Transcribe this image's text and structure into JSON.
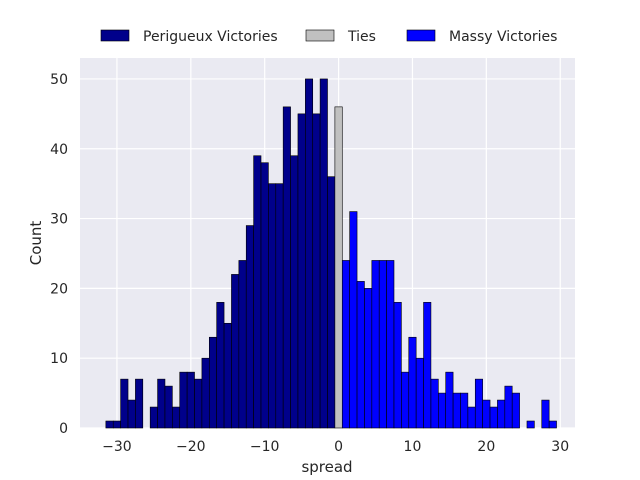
{
  "chart_data": {
    "type": "bar",
    "xlabel": "spread",
    "ylabel": "Count",
    "xlim": [
      -35,
      32
    ],
    "ylim": [
      0,
      53
    ],
    "x_ticks": [
      -30,
      -20,
      -10,
      0,
      10,
      20,
      30
    ],
    "x_tick_labels": [
      "−30",
      "−20",
      "−10",
      "0",
      "10",
      "20",
      "30"
    ],
    "y_ticks": [
      0,
      10,
      20,
      30,
      40,
      50
    ],
    "y_tick_labels": [
      "0",
      "10",
      "20",
      "30",
      "40",
      "50"
    ],
    "grid": true,
    "legend_position": "top",
    "background_color": "#eaeaf2",
    "series": [
      {
        "name": "Perigueux Victories",
        "color": "#00008b",
        "x": [
          -31,
          -30,
          -29,
          -28,
          -27,
          -26,
          -25,
          -24,
          -23,
          -22,
          -21,
          -20,
          -19,
          -18,
          -17,
          -16,
          -15,
          -14,
          -13,
          -12,
          -11,
          -10,
          -9,
          -8,
          -7,
          -6,
          -5,
          -4,
          -3,
          -2,
          -1
        ],
        "values": [
          1,
          1,
          7,
          4,
          7,
          0,
          3,
          7,
          6,
          3,
          8,
          8,
          7,
          10,
          13,
          18,
          15,
          22,
          24,
          29,
          39,
          38,
          35,
          35,
          46,
          39,
          45,
          50,
          45,
          50,
          36
        ]
      },
      {
        "name": "Ties",
        "color": "#c0c0c0",
        "x": [
          0
        ],
        "values": [
          46
        ]
      },
      {
        "name": "Massy Victories",
        "color": "#0000ff",
        "x": [
          1,
          2,
          3,
          4,
          5,
          6,
          7,
          8,
          9,
          10,
          11,
          12,
          13,
          14,
          15,
          16,
          17,
          18,
          19,
          20,
          21,
          22,
          23,
          24,
          25,
          26,
          27,
          28,
          29
        ],
        "values": [
          24,
          31,
          21,
          20,
          24,
          24,
          24,
          18,
          8,
          13,
          10,
          18,
          7,
          5,
          8,
          5,
          5,
          3,
          7,
          4,
          3,
          4,
          6,
          5,
          0,
          1,
          0,
          4,
          1
        ]
      }
    ]
  }
}
